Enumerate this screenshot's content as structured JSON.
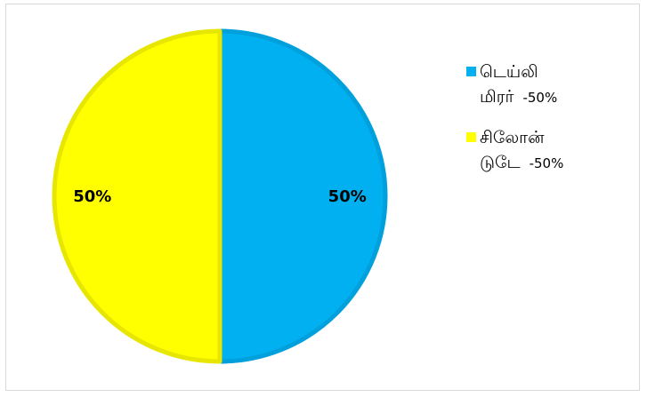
{
  "chart_data": {
    "type": "pie",
    "slices": [
      {
        "label_line1": "டெய்லி",
        "label_line2": "மிரர்",
        "legend_value": "-50%",
        "value": 50,
        "data_label": "50%",
        "color": "#00b0f0",
        "edge_color": "#00a0dc"
      },
      {
        "label_line1": "சிலோன்",
        "label_line2": "டுடே",
        "legend_value": "-50%",
        "value": 50,
        "data_label": "50%",
        "color": "#ffff00",
        "edge_color": "#e6e600"
      }
    ],
    "legend_position": "right"
  }
}
